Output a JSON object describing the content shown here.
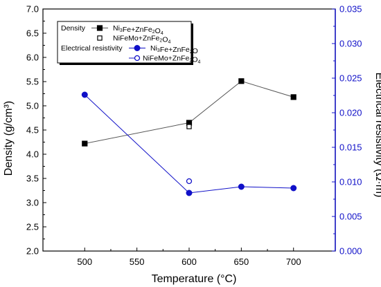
{
  "chart_data": {
    "type": "line",
    "xlabel": "Temperature (°C)",
    "ylabel_left": "Density (g/cm³)",
    "ylabel_right": "Electrical resistivity (Ω·m)",
    "xlim": [
      460,
      740
    ],
    "xticks": [
      500,
      550,
      600,
      650,
      700
    ],
    "ylim_left": [
      2.0,
      7.0
    ],
    "yticks_left": [
      "2.0",
      "2.5",
      "3.0",
      "3.5",
      "4.0",
      "4.5",
      "5.0",
      "5.5",
      "6.0",
      "6.5",
      "7.0"
    ],
    "ylim_right": [
      0.0,
      0.035
    ],
    "yticks_right": [
      "0.000",
      "0.005",
      "0.010",
      "0.015",
      "0.020",
      "0.025",
      "0.030",
      "0.035"
    ],
    "grid": false,
    "legend_position": "top-left",
    "legend": {
      "group1": "Density",
      "group2": "Electrical resistivity",
      "entries": [
        {
          "pre": "Ni",
          "sub": "3",
          "post": "Fe+ZnFe",
          "sub2": "2",
          "post2": "O",
          "sub3": "4",
          "post3": ""
        },
        {
          "pre": "NiFeMo+ZnFe",
          "sub": "2",
          "post": "O",
          "sub2": "4",
          "post2": "",
          "sub3": "",
          "post3": ""
        },
        {
          "pre": "Ni",
          "sub": "3",
          "post": "Fe+ZnFe",
          "sub2": "2",
          "post2": "O",
          "sub3": "",
          "post3": ""
        },
        {
          "pre": "NiFeMo+ZnFe",
          "sub": "2",
          "post": "O",
          "sub2": "4",
          "post2": "",
          "sub3": "",
          "post3": ""
        }
      ]
    },
    "series": [
      {
        "name": "Ni3Fe+ZnFe2O4",
        "group": "Density",
        "axis": "left",
        "marker": "square-filled",
        "color": "#000000",
        "line_color": "#555555",
        "x": [
          500,
          600,
          650,
          700
        ],
        "y": [
          4.22,
          4.65,
          5.51,
          5.18
        ]
      },
      {
        "name": "NiFeMo+ZnFe2O4",
        "group": "Density",
        "axis": "left",
        "marker": "square-open",
        "color": "#000000",
        "x": [
          600
        ],
        "y": [
          4.57
        ]
      },
      {
        "name": "Ni3Fe+ZnFe2O",
        "group": "Electrical resistivity",
        "axis": "right",
        "marker": "circle-filled",
        "color": "#1010c8",
        "line_color": "#1010c8",
        "x": [
          500,
          600,
          650,
          700
        ],
        "y": [
          0.0226,
          0.0084,
          0.0093,
          0.0091
        ]
      },
      {
        "name": "NiFeMo+ZnFe2O4",
        "group": "Electrical resistivity",
        "axis": "right",
        "marker": "circle-open",
        "color": "#1010c8",
        "x": [
          600
        ],
        "y": [
          0.0101
        ]
      }
    ]
  }
}
